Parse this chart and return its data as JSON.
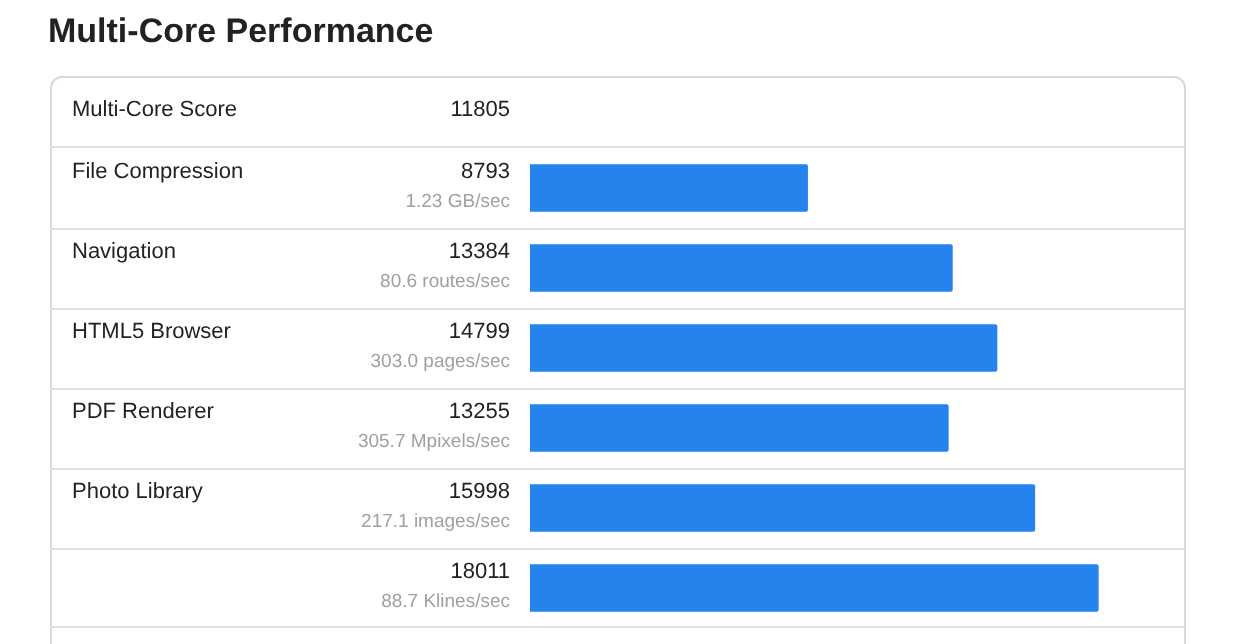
{
  "chart_data": {
    "type": "bar",
    "orientation": "horizontal",
    "title": "Multi-Core Performance",
    "categories": [
      "File Compression",
      "Navigation",
      "HTML5 Browser",
      "PDF Renderer",
      "Photo Library",
      null
    ],
    "values": [
      8793,
      13384,
      14799,
      13255,
      15998,
      18011
    ],
    "value_labels": [
      "8793",
      "13384",
      "14799",
      "13255",
      "15998",
      "18011"
    ],
    "color": "#2583ee",
    "legend": false,
    "tick_labels": false,
    "annotations": [
      "Multi-Core Score",
      "11805",
      "1.23 GB/sec",
      "80.6 routes/sec",
      "303.0 pages/sec",
      "305.7 Mpixels/sec",
      "217.1 images/sec",
      "88.7 Klines/sec"
    ]
  }
}
